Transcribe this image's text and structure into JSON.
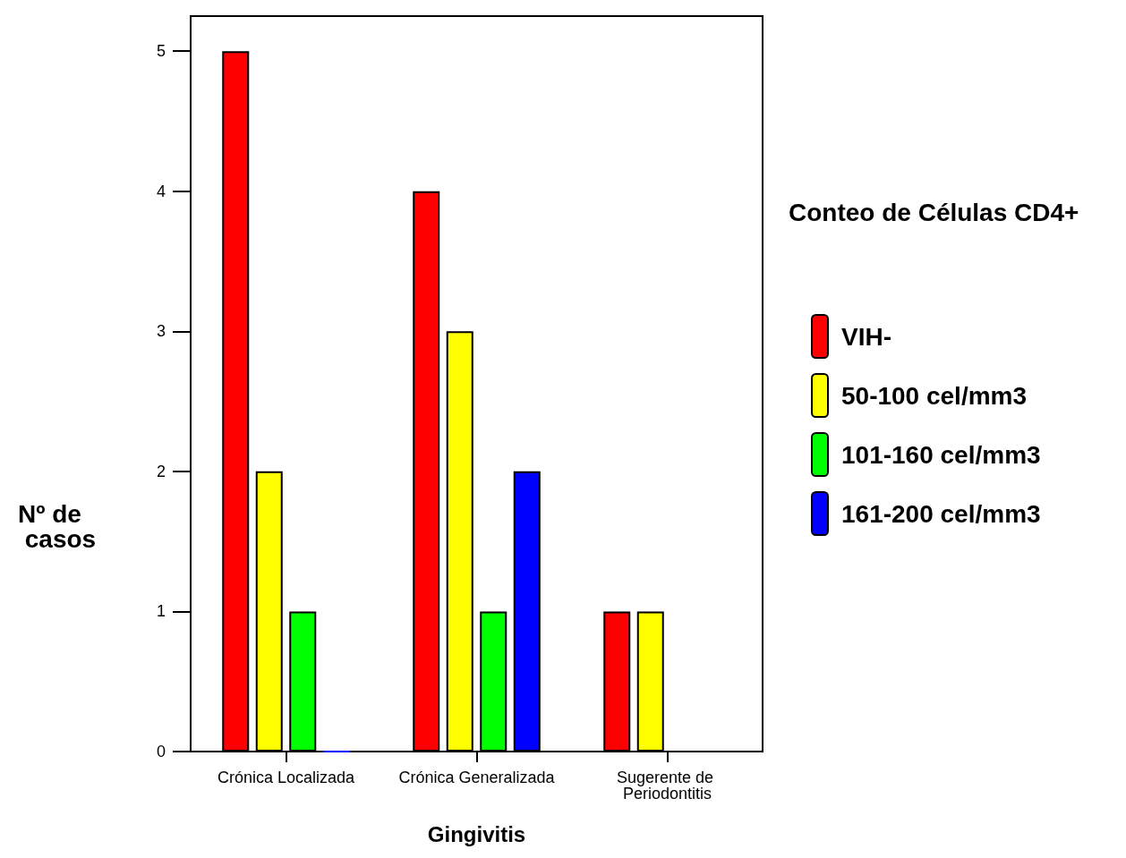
{
  "chart_data": {
    "type": "bar",
    "xlabel": "Gingivitis",
    "ylabel": "Nº de casos",
    "legend_title": "Conteo de Células CD4+",
    "categories": [
      "Crónica Localizada",
      "Crónica Generalizada",
      "Sugerente de Periodontitis"
    ],
    "series": [
      {
        "name": "VIH-",
        "color": "#ff0000",
        "values": [
          5,
          4,
          1
        ]
      },
      {
        "name": "50-100 cel/mm3",
        "color": "#ffff00",
        "values": [
          2,
          3,
          1
        ]
      },
      {
        "name": "101-160 cel/mm3",
        "color": "#00ff00",
        "values": [
          1,
          1,
          null
        ]
      },
      {
        "name": "161-200 cel/mm3",
        "color": "#0000ff",
        "values": [
          0,
          2,
          null
        ]
      }
    ],
    "ylim": [
      0,
      5.25
    ],
    "yticks": [
      0,
      1,
      2,
      3,
      4,
      5
    ],
    "grid": false,
    "legend": "right"
  }
}
